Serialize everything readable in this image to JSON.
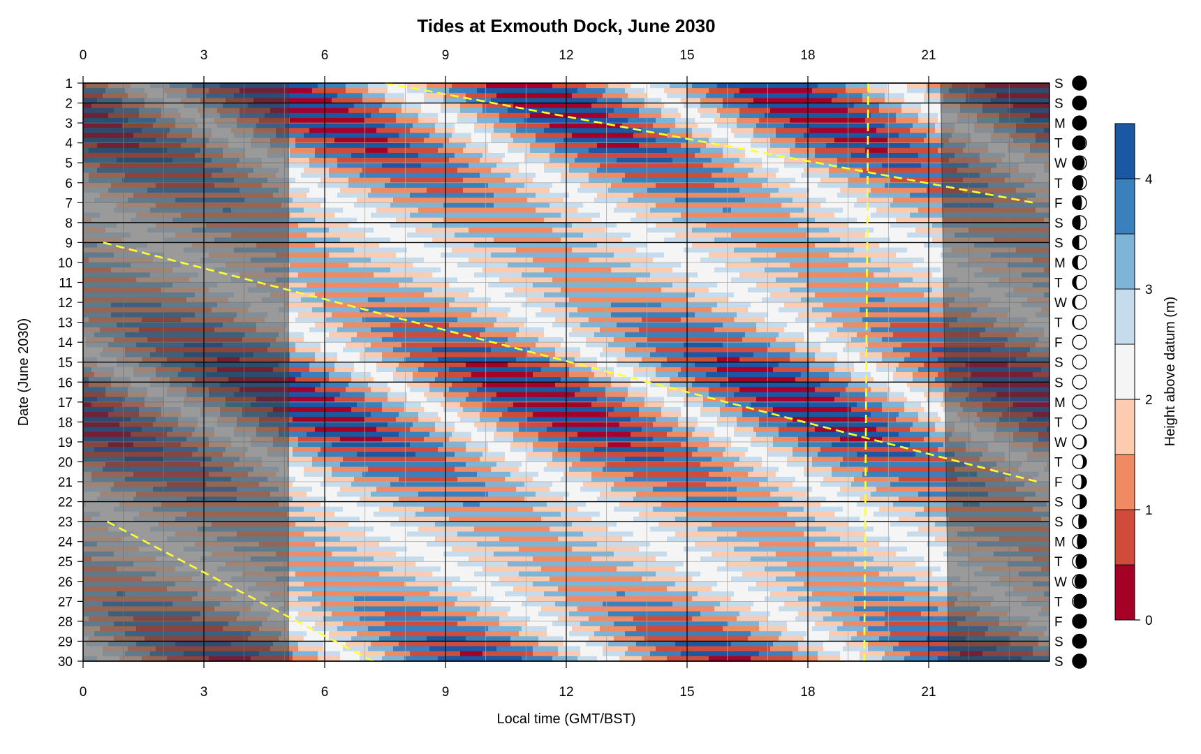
{
  "chart_data": {
    "type": "heatmap",
    "title": "Tides at Exmouth Dock, June 2030",
    "xlabel": "Local time (GMT/BST)",
    "ylabel": "Date (June 2030)",
    "colorbar_label": "Height above datum (m)",
    "x_range": [
      0,
      24
    ],
    "y_range": [
      1,
      30
    ],
    "x_ticks": [
      0,
      3,
      6,
      9,
      12,
      15,
      18,
      21
    ],
    "y_ticks": [
      1,
      2,
      3,
      4,
      5,
      6,
      7,
      8,
      9,
      10,
      11,
      12,
      13,
      14,
      15,
      16,
      17,
      18,
      19,
      20,
      21,
      22,
      23,
      24,
      25,
      26,
      27,
      28,
      29,
      30
    ],
    "colorbar_ticks": [
      0,
      1,
      2,
      3,
      4
    ],
    "color_levels": [
      0,
      0.5,
      1,
      1.5,
      2,
      2.5,
      3,
      3.5,
      4,
      4.5
    ],
    "colors": [
      "#a50026",
      "#d14b3b",
      "#ef8a62",
      "#fdcbb0",
      "#f5f5f5",
      "#c6dcec",
      "#7eb4d8",
      "#3a80bd",
      "#1b58a3"
    ],
    "night_shading": {
      "color": "#404040",
      "opacity": 0.5,
      "dawn": [
        [
          1,
          5.1
        ],
        [
          30,
          5.1
        ]
      ],
      "dusk": [
        [
          1,
          21.3
        ],
        [
          30,
          21.5
        ]
      ]
    },
    "weekend_lines": [
      1,
      2,
      8,
      9,
      15,
      16,
      22,
      23,
      29,
      30
    ],
    "moon_transit": {
      "color": "#ffff33",
      "segments": [
        [
          [
            7.5,
            1
          ],
          [
            23.6,
            7
          ]
        ],
        [
          [
            0.5,
            9
          ],
          [
            23.7,
            21
          ]
        ],
        [
          [
            0.6,
            23
          ],
          [
            7.2,
            30
          ]
        ],
        [
          [
            19.5,
            1
          ],
          [
            19.4,
            30
          ]
        ]
      ]
    },
    "tide_model": {
      "mean": 2.35,
      "amp_mean": 1.5,
      "amp_variation": 0.6,
      "spring_days": [
        2,
        17
      ],
      "first_high_hour": 7.6,
      "daily_lag_hours": 0.83
    },
    "weekday_letters": [
      "S",
      "S",
      "M",
      "T",
      "W",
      "T",
      "F",
      "S",
      "S",
      "M",
      "T",
      "W",
      "T",
      "F",
      "S",
      "S",
      "M",
      "T",
      "W",
      "T",
      "F",
      "S",
      "S",
      "M",
      "T",
      "W",
      "T",
      "F",
      "S",
      "S"
    ],
    "moon_illumination": [
      0.02,
      0.0,
      0.02,
      0.06,
      0.13,
      0.22,
      0.32,
      0.42,
      0.53,
      0.63,
      0.73,
      0.82,
      0.9,
      0.96,
      0.99,
      1.0,
      0.98,
      0.93,
      0.85,
      0.75,
      0.64,
      0.52,
      0.41,
      0.31,
      0.22,
      0.14,
      0.07,
      0.03,
      0.01,
      0.02
    ],
    "moon_waxing": [
      true,
      true,
      true,
      true,
      true,
      true,
      true,
      true,
      true,
      true,
      true,
      true,
      true,
      true,
      true,
      true,
      false,
      false,
      false,
      false,
      false,
      false,
      false,
      false,
      false,
      false,
      false,
      false,
      false,
      true
    ]
  }
}
